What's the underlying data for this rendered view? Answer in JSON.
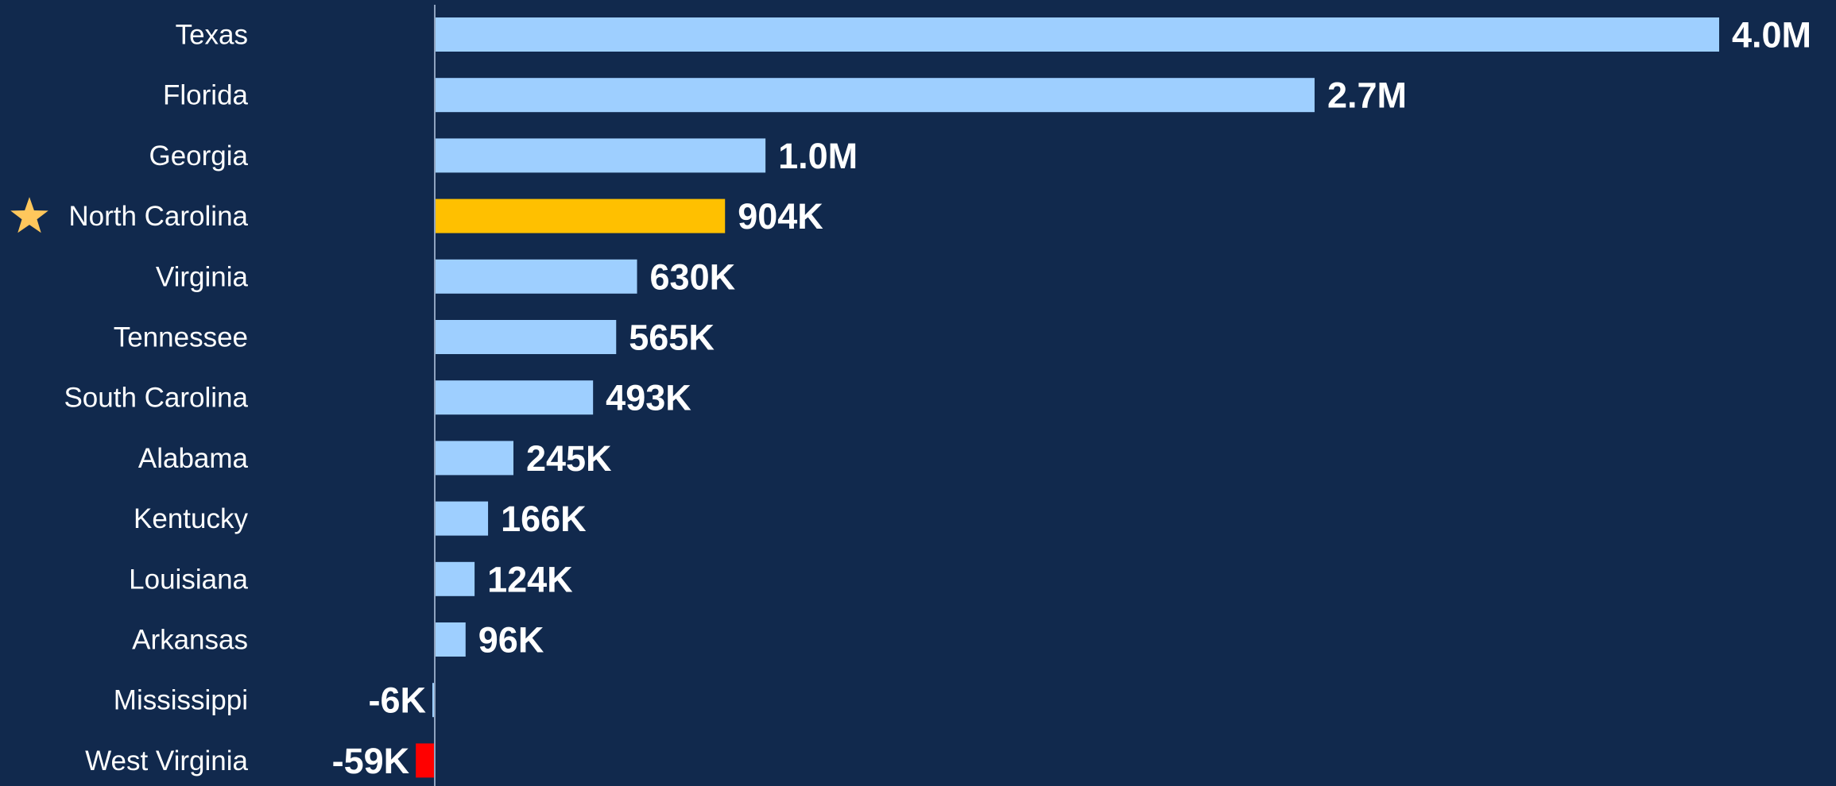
{
  "colors": {
    "background": "#11294d",
    "positive": "#9ecfff",
    "highlight": "#ffc000",
    "negative": "#ff0000",
    "axis": "#8fa3bf",
    "star": "#ffc75c"
  },
  "chart_data": {
    "type": "bar",
    "orientation": "horizontal",
    "title": "",
    "xlabel": "",
    "ylabel": "",
    "grid": false,
    "legend": "none",
    "xlim": [
      -60000,
      4100000
    ],
    "highlight": "North Carolina",
    "highlight_icon": "star-icon",
    "categories": [
      "Texas",
      "Florida",
      "Georgia",
      "North Carolina",
      "Virginia",
      "Tennessee",
      "South Carolina",
      "Alabama",
      "Kentucky",
      "Louisiana",
      "Arkansas",
      "Mississippi",
      "West Virginia"
    ],
    "values": [
      4000000,
      2740000,
      1030000,
      904000,
      630000,
      565000,
      493000,
      245000,
      166000,
      124000,
      96000,
      -6000,
      -59000
    ],
    "value_labels": [
      "4.0M",
      "2.7M",
      "1.0M",
      "904K",
      "630K",
      "565K",
      "493K",
      "245K",
      "166K",
      "124K",
      "96K",
      "-6K",
      "-59K"
    ]
  }
}
